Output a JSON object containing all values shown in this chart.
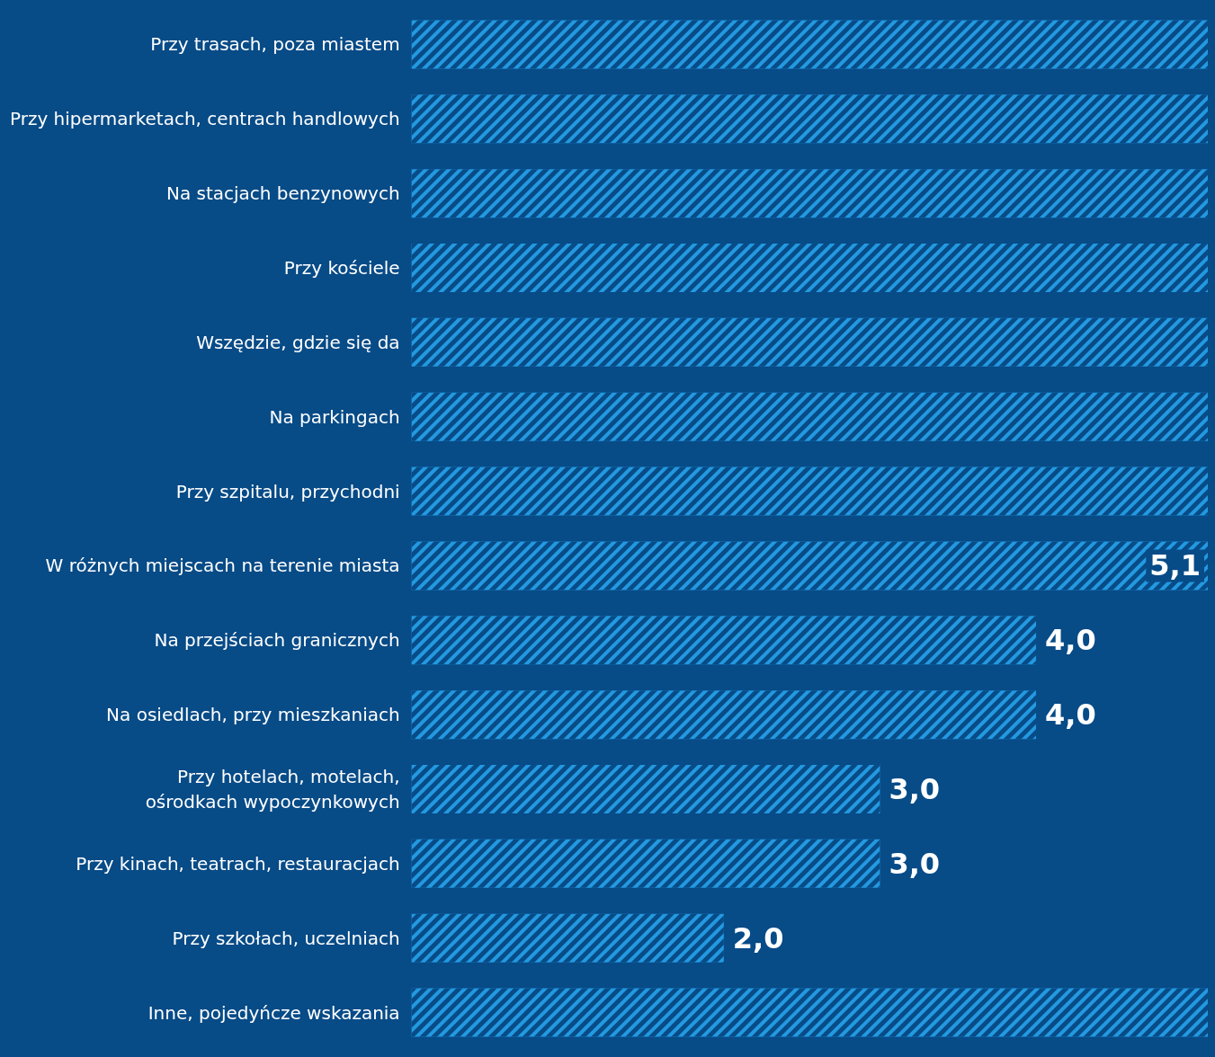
{
  "chart_data": {
    "type": "bar",
    "orientation": "horizontal",
    "categories": [
      "Przy trasach, poza miastem",
      "Przy hipermarketach, centrach handlowych",
      "Na stacjach benzynowych",
      "Przy kościele",
      "Wszędzie, gdzie się da",
      "Na parkingach",
      "Przy szpitalu, przychodni",
      "W różnych miejscach na terenie miasta",
      "Na przejściach granicznych",
      "Na osiedlach, przy mieszkaniach",
      "Przy hotelach, motelach,\nośrodkach wypoczynkowych",
      "Przy kinach, teatrach, restauracjach",
      "Przy szkołach, uczelniach",
      "Inne, pojedyńcze wskazania"
    ],
    "values": [
      5.1,
      5.1,
      5.1,
      5.1,
      5.1,
      5.1,
      5.1,
      5.1,
      4.0,
      4.0,
      3.0,
      3.0,
      2.0,
      5.1
    ],
    "value_labels": [
      null,
      null,
      null,
      null,
      null,
      null,
      null,
      "5,1",
      "4,0",
      "4,0",
      "3,0",
      "3,0",
      "2,0",
      null
    ],
    "color": "#2399e0",
    "xlim": [
      0,
      5.1
    ]
  }
}
